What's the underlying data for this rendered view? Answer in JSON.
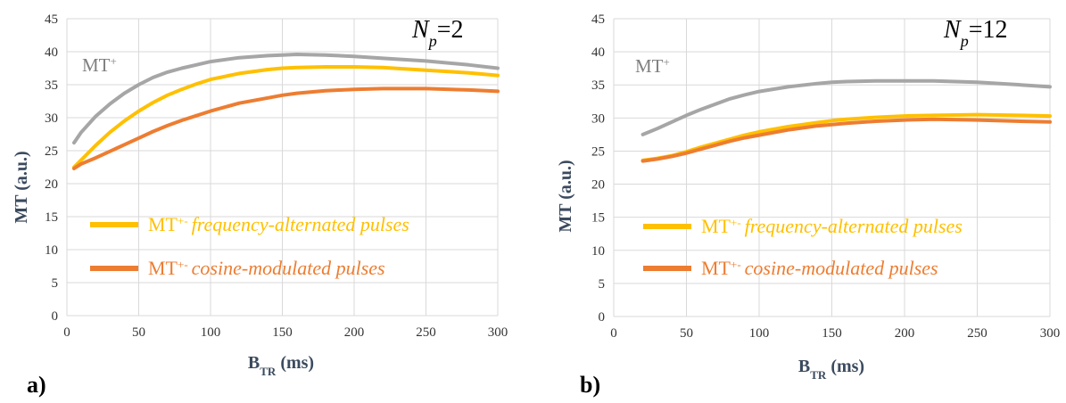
{
  "panels": [
    {
      "label": "a)",
      "np_label": {
        "symbol": "N",
        "sub": "p",
        "value": "=2"
      },
      "mtplus_label": {
        "text": "MT",
        "sup": "+"
      }
    },
    {
      "label": "b)",
      "np_label": {
        "symbol": "N",
        "sub": "p",
        "value": "=12"
      },
      "mtplus_label": {
        "text": "MT",
        "sup": "+"
      }
    }
  ],
  "legend_items": [
    {
      "prefix": "MT",
      "sup": "+-",
      "text": "frequency-alternated pulses",
      "color": "#ffc000"
    },
    {
      "prefix": "MT",
      "sup": "+-",
      "text": "cosine-modulated pulses",
      "color": "#ed7d31"
    }
  ],
  "colors": {
    "mt_plus": "#a6a6a6",
    "mt_freq": "#ffc000",
    "mt_cos": "#ed7d31",
    "grid": "#d9d9d9"
  },
  "chart_data": [
    {
      "type": "line",
      "xlabel": {
        "main": "B",
        "sub": "TR",
        "rest": " (ms)"
      },
      "ylabel": "MT (a.u.)",
      "xlim": [
        0,
        300
      ],
      "ylim": [
        0,
        45
      ],
      "xticks": [
        0,
        50,
        100,
        150,
        200,
        250,
        300
      ],
      "yticks": [
        0,
        5,
        10,
        15,
        20,
        25,
        30,
        35,
        40,
        45
      ],
      "grid": true,
      "legend_placement": "lower-left",
      "series": [
        {
          "name": "MT+",
          "color": "#a6a6a6",
          "x": [
            5,
            10,
            20,
            30,
            40,
            50,
            60,
            70,
            80,
            90,
            100,
            120,
            140,
            150,
            160,
            180,
            200,
            220,
            250,
            280,
            300
          ],
          "y": [
            26.2,
            27.8,
            30.2,
            32.1,
            33.7,
            35.0,
            36.1,
            36.9,
            37.5,
            38.0,
            38.5,
            39.1,
            39.4,
            39.5,
            39.6,
            39.5,
            39.3,
            39.0,
            38.6,
            38.0,
            37.5
          ]
        },
        {
          "name": "MT+- frequency-alternated pulses",
          "color": "#ffc000",
          "x": [
            5,
            10,
            20,
            30,
            40,
            50,
            60,
            70,
            80,
            90,
            100,
            120,
            140,
            150,
            160,
            180,
            200,
            220,
            250,
            280,
            300
          ],
          "y": [
            22.5,
            23.6,
            25.8,
            27.8,
            29.5,
            31.0,
            32.3,
            33.4,
            34.3,
            35.1,
            35.8,
            36.7,
            37.3,
            37.5,
            37.6,
            37.7,
            37.7,
            37.6,
            37.2,
            36.8,
            36.4
          ]
        },
        {
          "name": "MT+- cosine-modulated pulses",
          "color": "#ed7d31",
          "x": [
            5,
            10,
            20,
            30,
            40,
            50,
            60,
            70,
            80,
            90,
            100,
            120,
            140,
            150,
            160,
            180,
            200,
            220,
            250,
            280,
            300
          ],
          "y": [
            22.3,
            23.0,
            23.9,
            24.9,
            25.9,
            26.9,
            27.9,
            28.8,
            29.6,
            30.3,
            31.0,
            32.2,
            33.0,
            33.4,
            33.7,
            34.1,
            34.3,
            34.4,
            34.4,
            34.2,
            34.0
          ]
        }
      ]
    },
    {
      "type": "line",
      "xlabel": {
        "main": "B",
        "sub": "TR",
        "rest": " (ms)"
      },
      "ylabel": "MT (a.u.)",
      "xlim": [
        0,
        300
      ],
      "ylim": [
        0,
        45
      ],
      "xticks": [
        0,
        50,
        100,
        150,
        200,
        250,
        300
      ],
      "yticks": [
        0,
        5,
        10,
        15,
        20,
        25,
        30,
        35,
        40,
        45
      ],
      "grid": true,
      "legend_placement": "lower-left",
      "series": [
        {
          "name": "MT+",
          "color": "#a6a6a6",
          "x": [
            20,
            30,
            40,
            50,
            60,
            70,
            80,
            90,
            100,
            120,
            140,
            150,
            160,
            180,
            200,
            220,
            250,
            280,
            300
          ],
          "y": [
            27.5,
            28.4,
            29.4,
            30.4,
            31.3,
            32.1,
            32.9,
            33.5,
            34.0,
            34.7,
            35.2,
            35.4,
            35.5,
            35.6,
            35.6,
            35.6,
            35.4,
            35.0,
            34.7
          ]
        },
        {
          "name": "MT+- frequency-alternated pulses",
          "color": "#ffc000",
          "x": [
            20,
            30,
            40,
            50,
            60,
            70,
            80,
            90,
            100,
            120,
            140,
            150,
            160,
            180,
            200,
            220,
            250,
            280,
            300
          ],
          "y": [
            23.6,
            23.9,
            24.3,
            24.9,
            25.6,
            26.2,
            26.8,
            27.4,
            27.9,
            28.7,
            29.3,
            29.6,
            29.8,
            30.1,
            30.3,
            30.4,
            30.5,
            30.4,
            30.3
          ]
        },
        {
          "name": "MT+- cosine-modulated pulses",
          "color": "#ed7d31",
          "x": [
            20,
            30,
            40,
            50,
            60,
            70,
            80,
            90,
            100,
            120,
            140,
            150,
            160,
            180,
            200,
            220,
            250,
            280,
            300
          ],
          "y": [
            23.5,
            23.8,
            24.2,
            24.7,
            25.3,
            25.9,
            26.5,
            27.0,
            27.4,
            28.2,
            28.8,
            29.0,
            29.2,
            29.5,
            29.7,
            29.8,
            29.7,
            29.5,
            29.4
          ]
        }
      ]
    }
  ]
}
